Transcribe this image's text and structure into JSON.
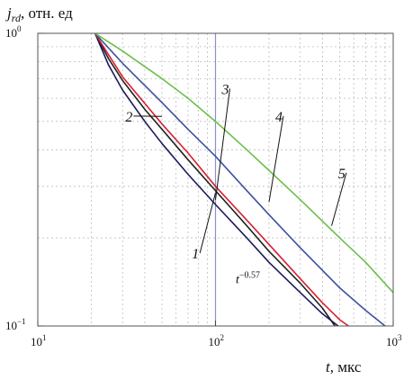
{
  "chart_data": {
    "type": "line",
    "log_x": true,
    "log_y": true,
    "xlim": [
      10,
      1000
    ],
    "ylim": [
      0.1,
      1
    ],
    "grid": true,
    "ylabel_var": "j",
    "ylabel_sub": "rd",
    "ylabel_rest": ", отн. ед",
    "xlabel_var": "t",
    "xlabel_rest": ", мкс",
    "x_ticks": [
      {
        "value": 10,
        "base": "10",
        "exp": "1"
      },
      {
        "value": 100,
        "base": "10",
        "exp": "2"
      },
      {
        "value": 1000,
        "base": "10",
        "exp": "3"
      }
    ],
    "y_ticks": [
      {
        "value": 1,
        "base": "10",
        "exp": "0"
      },
      {
        "value": 0.1,
        "base": "10",
        "exp": "−1"
      }
    ],
    "vline_x": 100,
    "vline_color": "#8a8fd0",
    "series": [
      {
        "label": "1",
        "color": "#1a1a5e",
        "x": [
          21,
          25,
          30,
          40,
          50,
          70,
          100,
          150,
          200,
          300,
          400,
          490
        ],
        "y": [
          1.0,
          0.78,
          0.64,
          0.5,
          0.42,
          0.33,
          0.26,
          0.2,
          0.165,
          0.13,
          0.11,
          0.1
        ]
      },
      {
        "label": "2",
        "color": "#222222",
        "x": [
          21,
          25,
          30,
          40,
          50,
          70,
          100,
          150,
          200,
          300,
          400,
          470
        ],
        "y": [
          1.0,
          0.82,
          0.69,
          0.55,
          0.47,
          0.37,
          0.29,
          0.22,
          0.18,
          0.14,
          0.115,
          0.1
        ]
      },
      {
        "label": "3",
        "color": "#d62030",
        "x": [
          21,
          30,
          50,
          70,
          100,
          150,
          200,
          300,
          400,
          500,
          560
        ],
        "y": [
          1.0,
          0.71,
          0.49,
          0.39,
          0.3,
          0.23,
          0.19,
          0.145,
          0.12,
          0.105,
          0.1
        ]
      },
      {
        "label": "4",
        "color": "#3e4fa0",
        "x": [
          21,
          30,
          50,
          70,
          100,
          150,
          200,
          300,
          500,
          700,
          900
        ],
        "y": [
          1.0,
          0.79,
          0.58,
          0.47,
          0.38,
          0.29,
          0.24,
          0.185,
          0.135,
          0.113,
          0.1
        ]
      },
      {
        "label": "5",
        "color": "#6cbf4a",
        "x": [
          21,
          30,
          50,
          70,
          100,
          150,
          200,
          300,
          500,
          700,
          1000
        ],
        "y": [
          1.0,
          0.87,
          0.7,
          0.6,
          0.5,
          0.4,
          0.34,
          0.27,
          0.2,
          0.165,
          0.13
        ]
      }
    ],
    "annotations": [
      {
        "text": "1",
        "anchor_x": 100,
        "anchor_y": 0.285,
        "text_x": 78,
        "text_y": 0.17
      },
      {
        "text": "2",
        "anchor_x": 50,
        "anchor_y": 0.52,
        "text_x": 33,
        "text_y": 0.5
      },
      {
        "text": "3",
        "anchor_x": 100,
        "anchor_y": 0.27,
        "text_x": 115,
        "text_y": 0.62
      },
      {
        "text": "4",
        "anchor_x": 200,
        "anchor_y": 0.265,
        "text_x": 230,
        "text_y": 0.5
      },
      {
        "text": "5",
        "anchor_x": 450,
        "anchor_y": 0.22,
        "text_x": 520,
        "text_y": 0.32
      }
    ],
    "power_label": {
      "base": "t",
      "exp": "−0.57",
      "x": 130,
      "y": 0.14
    }
  }
}
